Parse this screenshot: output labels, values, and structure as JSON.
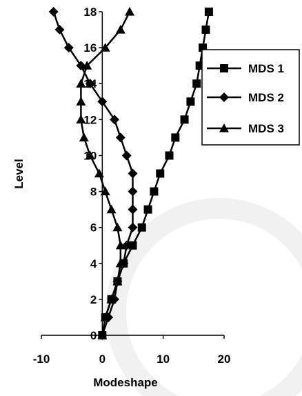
{
  "chart_data": {
    "type": "line",
    "title": "",
    "xlabel": "Modeshape",
    "ylabel": "Level",
    "xlim": [
      -10,
      20
    ],
    "ylim": [
      0,
      18
    ],
    "xticks": [
      "-10",
      "0",
      "10",
      "20"
    ],
    "yticks": [
      "0",
      "2",
      "4",
      "6",
      "8",
      "10",
      "12",
      "14",
      "16",
      "18"
    ],
    "grid": false,
    "legend_position": "right",
    "series": [
      {
        "name": "MDS 1",
        "marker": "square",
        "color": "#000000",
        "points": [
          [
            0,
            0
          ],
          [
            0.5,
            1
          ],
          [
            1.5,
            2
          ],
          [
            2.5,
            3
          ],
          [
            3.5,
            4
          ],
          [
            5.0,
            5
          ],
          [
            6.5,
            6
          ],
          [
            7.5,
            7
          ],
          [
            8.5,
            8
          ],
          [
            9.5,
            9
          ],
          [
            11.0,
            10
          ],
          [
            12.0,
            11
          ],
          [
            13.5,
            12
          ],
          [
            14.5,
            13
          ],
          [
            15.5,
            14
          ],
          [
            16.0,
            15
          ],
          [
            16.5,
            16
          ],
          [
            17.0,
            17
          ],
          [
            17.5,
            18
          ]
        ]
      },
      {
        "name": "MDS 2",
        "marker": "diamond",
        "color": "#000000",
        "points": [
          [
            0,
            0
          ],
          [
            1.0,
            1
          ],
          [
            2.0,
            2
          ],
          [
            2.5,
            3
          ],
          [
            3.5,
            4
          ],
          [
            4.0,
            5
          ],
          [
            5.0,
            6
          ],
          [
            5.0,
            7
          ],
          [
            5.0,
            8
          ],
          [
            5.0,
            9
          ],
          [
            4.0,
            10
          ],
          [
            3.0,
            11
          ],
          [
            2.0,
            12
          ],
          [
            0.0,
            13
          ],
          [
            -2.0,
            14
          ],
          [
            -3.5,
            15
          ],
          [
            -5.5,
            16
          ],
          [
            -7.0,
            17
          ],
          [
            -8.0,
            18
          ]
        ]
      },
      {
        "name": "MDS 3",
        "marker": "triangle",
        "color": "#000000",
        "points": [
          [
            0,
            0
          ],
          [
            0.5,
            1
          ],
          [
            1.5,
            2
          ],
          [
            2.5,
            3
          ],
          [
            3.0,
            4
          ],
          [
            3.0,
            5
          ],
          [
            2.5,
            6
          ],
          [
            1.5,
            7
          ],
          [
            0.5,
            8
          ],
          [
            -0.5,
            9
          ],
          [
            -2.0,
            10
          ],
          [
            -3.0,
            11
          ],
          [
            -3.5,
            12
          ],
          [
            -3.5,
            13
          ],
          [
            -3.5,
            14
          ],
          [
            -2.5,
            15
          ],
          [
            0.5,
            16
          ],
          [
            3.0,
            17
          ],
          [
            4.5,
            18
          ]
        ]
      }
    ]
  }
}
